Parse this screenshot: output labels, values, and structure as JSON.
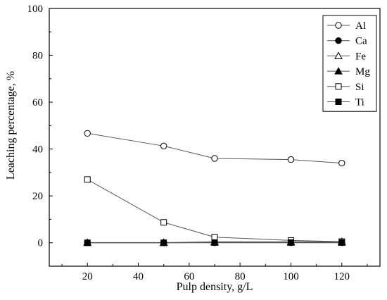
{
  "chart_data": {
    "type": "line",
    "title": "",
    "xlabel": "Pulp density, g/L",
    "ylabel": "Leaching percentage, %",
    "xlim": [
      5,
      135
    ],
    "ylim": [
      -10,
      100
    ],
    "xticks": [
      20,
      40,
      60,
      80,
      100,
      120
    ],
    "yticks": [
      0,
      20,
      40,
      60,
      80,
      100
    ],
    "grid": false,
    "legend_position": "top-right",
    "x": [
      20,
      50,
      70,
      100,
      120
    ],
    "series": [
      {
        "name": "Al",
        "marker": "circle-open",
        "values": [
          46.7,
          41.3,
          36.0,
          35.5,
          34.0
        ]
      },
      {
        "name": "Ca",
        "marker": "circle-filled",
        "values": [
          0.0,
          0.0,
          0.0,
          0.0,
          0.0
        ]
      },
      {
        "name": "Fe",
        "marker": "triangle-open",
        "values": [
          0.1,
          0.1,
          0.4,
          0.4,
          0.5
        ]
      },
      {
        "name": "Mg",
        "marker": "triangle-filled",
        "values": [
          0.0,
          0.0,
          0.2,
          0.2,
          0.2
        ]
      },
      {
        "name": "Si",
        "marker": "square-open",
        "values": [
          27.0,
          8.7,
          2.4,
          1.0,
          0.5
        ]
      },
      {
        "name": "Ti",
        "marker": "square-filled",
        "values": [
          0.0,
          0.0,
          0.1,
          0.1,
          0.1
        ]
      }
    ]
  }
}
